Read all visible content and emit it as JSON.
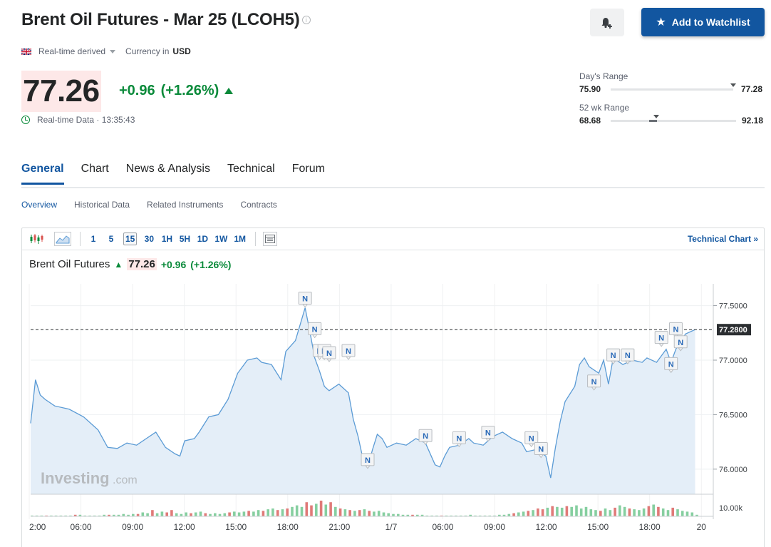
{
  "header": {
    "title": "Brent Oil Futures - Mar 25 (LCOH5)",
    "info_glyph": "i",
    "watchlist_label": "Add to Watchlist",
    "meta_source": "Real-time derived",
    "meta_currency_label": "Currency in",
    "meta_currency": "USD"
  },
  "quote": {
    "price": "77.26",
    "change": "+0.96",
    "change_pct": "(+1.26%)",
    "realtime": "Real-time Data · 13:35:43"
  },
  "ranges": {
    "day_label": "Day's Range",
    "day_low": "75.90",
    "day_high": "77.28",
    "week_label": "52 wk Range",
    "week_low": "68.68",
    "week_high": "92.18"
  },
  "tabs": [
    "General",
    "Chart",
    "News & Analysis",
    "Technical",
    "Forum"
  ],
  "subtabs": [
    "Overview",
    "Historical Data",
    "Related Instruments",
    "Contracts"
  ],
  "chart_toolbar": {
    "timeframes": [
      "1",
      "5",
      "15",
      "30",
      "1H",
      "5H",
      "1D",
      "1W",
      "1M"
    ],
    "active_timeframe": "15",
    "technical_link": "Technical Chart »"
  },
  "chart_header": {
    "name": "Brent Oil Futures",
    "price": "77.26",
    "change": "+0.96",
    "change_pct": "(+1.26%)"
  },
  "colors": {
    "accent": "#1256a0",
    "positive": "#0a8a3a",
    "negative": "#d9534f",
    "line": "#5b9bd5",
    "area": "#e4eef8"
  },
  "chart_data": {
    "type": "area",
    "watermark_main": "Investing",
    "watermark_suffix": ".com",
    "ylim": [
      75.77,
      77.7
    ],
    "y_ticks": [
      "77.5000",
      "77.0000",
      "76.5000",
      "76.0000"
    ],
    "y_tick_values": [
      77.5,
      77.0,
      76.5,
      76.0
    ],
    "last_value": 77.28,
    "last_label": "77.2800",
    "volume_label": "10.00k",
    "x_labels": [
      "2:00",
      "06:00",
      "09:00",
      "12:00",
      "15:00",
      "18:00",
      "21:00",
      "1/7",
      "06:00",
      "09:00",
      "12:00",
      "15:00",
      "18:00",
      "20"
    ],
    "points": [
      [
        0,
        76.42
      ],
      [
        1,
        76.82
      ],
      [
        2,
        76.68
      ],
      [
        3,
        76.64
      ],
      [
        5,
        76.58
      ],
      [
        8,
        76.55
      ],
      [
        11,
        76.48
      ],
      [
        14,
        76.36
      ],
      [
        16,
        76.2
      ],
      [
        18,
        76.19
      ],
      [
        20,
        76.24
      ],
      [
        22,
        76.22
      ],
      [
        24,
        76.28
      ],
      [
        26,
        76.34
      ],
      [
        28,
        76.2
      ],
      [
        30,
        76.14
      ],
      [
        31,
        76.12
      ],
      [
        32,
        76.26
      ],
      [
        34,
        76.28
      ],
      [
        35,
        76.34
      ],
      [
        37,
        76.48
      ],
      [
        39,
        76.5
      ],
      [
        41,
        76.64
      ],
      [
        43,
        76.88
      ],
      [
        45,
        77.0
      ],
      [
        47,
        77.02
      ],
      [
        48,
        76.98
      ],
      [
        50,
        76.96
      ],
      [
        52,
        76.82
      ],
      [
        53,
        77.08
      ],
      [
        55,
        77.18
      ],
      [
        57,
        77.48
      ],
      [
        58,
        77.26
      ],
      [
        59,
        77.02
      ],
      [
        60,
        76.9
      ],
      [
        61,
        76.76
      ],
      [
        62,
        76.72
      ],
      [
        64,
        76.78
      ],
      [
        66,
        76.7
      ],
      [
        67,
        76.46
      ],
      [
        68,
        76.3
      ],
      [
        69,
        76.1
      ],
      [
        70,
        76.02
      ],
      [
        71,
        76.18
      ],
      [
        72,
        76.32
      ],
      [
        73,
        76.28
      ],
      [
        74,
        76.2
      ],
      [
        76,
        76.24
      ],
      [
        78,
        76.22
      ],
      [
        80,
        76.28
      ],
      [
        82,
        76.24
      ],
      [
        84,
        76.04
      ],
      [
        85,
        76.02
      ],
      [
        86,
        76.12
      ],
      [
        87,
        76.2
      ],
      [
        89,
        76.22
      ],
      [
        91,
        76.28
      ],
      [
        92,
        76.24
      ],
      [
        94,
        76.22
      ],
      [
        96,
        76.3
      ],
      [
        98,
        76.34
      ],
      [
        100,
        76.28
      ],
      [
        102,
        76.24
      ],
      [
        103,
        76.16
      ],
      [
        105,
        76.18
      ],
      [
        107,
        76.12
      ],
      [
        108,
        75.92
      ],
      [
        109,
        76.2
      ],
      [
        110,
        76.44
      ],
      [
        111,
        76.62
      ],
      [
        113,
        76.76
      ],
      [
        114,
        76.96
      ],
      [
        115,
        77.02
      ],
      [
        116,
        76.94
      ],
      [
        118,
        76.88
      ],
      [
        119,
        77.0
      ],
      [
        120,
        76.78
      ],
      [
        121,
        77.02
      ],
      [
        123,
        76.96
      ],
      [
        125,
        77.0
      ],
      [
        127,
        76.98
      ],
      [
        128,
        77.02
      ],
      [
        130,
        76.98
      ],
      [
        131,
        77.04
      ],
      [
        132,
        77.1
      ],
      [
        133,
        76.98
      ],
      [
        134,
        77.1
      ],
      [
        136,
        77.24
      ],
      [
        138,
        77.28
      ]
    ],
    "point_x_max": 140,
    "news_markers": [
      [
        57,
        77.48
      ],
      [
        59,
        77.2
      ],
      [
        60,
        77.0
      ],
      [
        61,
        77.0
      ],
      [
        62,
        76.98
      ],
      [
        66,
        77.0
      ],
      [
        70,
        76.0
      ],
      [
        82,
        76.22
      ],
      [
        89,
        76.2
      ],
      [
        95,
        76.25
      ],
      [
        104,
        76.2
      ],
      [
        106,
        76.1
      ],
      [
        117,
        76.72
      ],
      [
        121,
        76.96
      ],
      [
        124,
        76.96
      ],
      [
        131,
        77.12
      ],
      [
        133,
        76.88
      ],
      [
        134,
        77.2
      ],
      [
        135,
        77.08
      ]
    ],
    "volume": [
      [
        0,
        1
      ],
      [
        1,
        1
      ],
      [
        2,
        1
      ],
      [
        3,
        1
      ],
      [
        4,
        1
      ],
      [
        5,
        1
      ],
      [
        6,
        1
      ],
      [
        7,
        1
      ],
      [
        8,
        1
      ],
      [
        9,
        2
      ],
      [
        10,
        2
      ],
      [
        11,
        1
      ],
      [
        12,
        1
      ],
      [
        13,
        1
      ],
      [
        14,
        1
      ],
      [
        15,
        2
      ],
      [
        16,
        2
      ],
      [
        17,
        2
      ],
      [
        18,
        2
      ],
      [
        19,
        3
      ],
      [
        20,
        2
      ],
      [
        21,
        3
      ],
      [
        22,
        3
      ],
      [
        23,
        5
      ],
      [
        24,
        4
      ],
      [
        25,
        8
      ],
      [
        26,
        4
      ],
      [
        27,
        6
      ],
      [
        28,
        5
      ],
      [
        29,
        8
      ],
      [
        30,
        4
      ],
      [
        31,
        3
      ],
      [
        32,
        5
      ],
      [
        33,
        4
      ],
      [
        34,
        5
      ],
      [
        35,
        6
      ],
      [
        36,
        4
      ],
      [
        37,
        3
      ],
      [
        38,
        4
      ],
      [
        39,
        3
      ],
      [
        40,
        4
      ],
      [
        41,
        5
      ],
      [
        42,
        6
      ],
      [
        43,
        5
      ],
      [
        44,
        6
      ],
      [
        45,
        7
      ],
      [
        46,
        6
      ],
      [
        47,
        8
      ],
      [
        48,
        7
      ],
      [
        49,
        9
      ],
      [
        50,
        10
      ],
      [
        51,
        8
      ],
      [
        52,
        9
      ],
      [
        53,
        10
      ],
      [
        54,
        12
      ],
      [
        55,
        14
      ],
      [
        56,
        12
      ],
      [
        57,
        18
      ],
      [
        58,
        14
      ],
      [
        59,
        16
      ],
      [
        60,
        20
      ],
      [
        61,
        15
      ],
      [
        62,
        18
      ],
      [
        63,
        12
      ],
      [
        64,
        10
      ],
      [
        65,
        9
      ],
      [
        66,
        8
      ],
      [
        67,
        7
      ],
      [
        68,
        8
      ],
      [
        69,
        9
      ],
      [
        70,
        7
      ],
      [
        71,
        6
      ],
      [
        72,
        7
      ],
      [
        73,
        5
      ],
      [
        74,
        4
      ],
      [
        75,
        3
      ],
      [
        76,
        3
      ],
      [
        77,
        2
      ],
      [
        78,
        2
      ],
      [
        79,
        2
      ],
      [
        80,
        2
      ],
      [
        81,
        2
      ],
      [
        82,
        1
      ],
      [
        83,
        1
      ],
      [
        84,
        1
      ],
      [
        85,
        1
      ],
      [
        86,
        1
      ],
      [
        87,
        1
      ],
      [
        88,
        1
      ],
      [
        89,
        1
      ],
      [
        90,
        1
      ],
      [
        91,
        2
      ],
      [
        92,
        1
      ],
      [
        93,
        1
      ],
      [
        94,
        1
      ],
      [
        95,
        1
      ],
      [
        96,
        1
      ],
      [
        97,
        2
      ],
      [
        98,
        2
      ],
      [
        99,
        3
      ],
      [
        100,
        4
      ],
      [
        101,
        5
      ],
      [
        102,
        6
      ],
      [
        103,
        7
      ],
      [
        104,
        8
      ],
      [
        105,
        10
      ],
      [
        106,
        9
      ],
      [
        107,
        11
      ],
      [
        108,
        13
      ],
      [
        109,
        12
      ],
      [
        110,
        11
      ],
      [
        111,
        13
      ],
      [
        112,
        12
      ],
      [
        113,
        14
      ],
      [
        114,
        10
      ],
      [
        115,
        12
      ],
      [
        116,
        9
      ],
      [
        117,
        8
      ],
      [
        118,
        7
      ],
      [
        119,
        10
      ],
      [
        120,
        8
      ],
      [
        121,
        11
      ],
      [
        122,
        14
      ],
      [
        123,
        12
      ],
      [
        124,
        10
      ],
      [
        125,
        9
      ],
      [
        126,
        8
      ],
      [
        127,
        10
      ],
      [
        128,
        13
      ],
      [
        129,
        15
      ],
      [
        130,
        12
      ],
      [
        131,
        10
      ],
      [
        132,
        8
      ],
      [
        133,
        11
      ],
      [
        134,
        9
      ],
      [
        135,
        7
      ],
      [
        136,
        6
      ],
      [
        137,
        5
      ],
      [
        138,
        2
      ]
    ],
    "volume_down": [
      3,
      9,
      16,
      22,
      25,
      28,
      29,
      33,
      36,
      41,
      45,
      48,
      51,
      53,
      57,
      58,
      60,
      62,
      64,
      66,
      68,
      70,
      79,
      85,
      100,
      103,
      105,
      106,
      108,
      111,
      118,
      121,
      124,
      128,
      130,
      133
    ]
  }
}
